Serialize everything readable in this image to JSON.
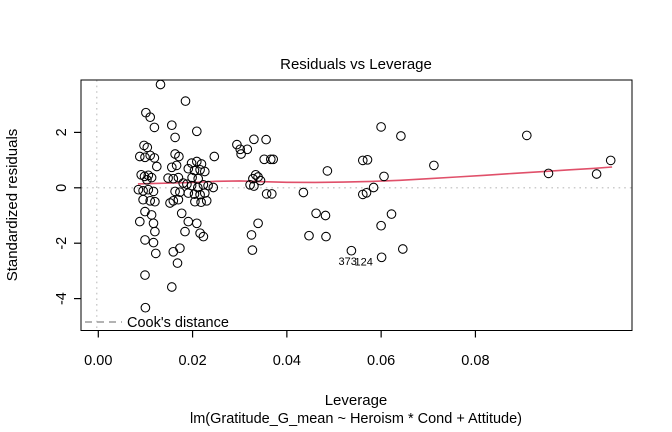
{
  "figure": {
    "title": "Residuals vs Leverage",
    "xlabel": "Leverage",
    "ylabel": "Standardized residuals",
    "formula": "lm(Gratitude_G_mean ~ Heroism * Cond + Attitude)",
    "legend": {
      "label": "Cook's distance",
      "line_style": "dashed"
    }
  },
  "colors": {
    "points": "#000000",
    "smooth_line": "#e0506a",
    "reference_dotted": "#bcbcbc",
    "legend_gray": "#9a9a9a",
    "box": "#000000",
    "background": "#ffffff"
  },
  "chart_data": {
    "type": "scatter",
    "title": "Residuals vs Leverage",
    "xlabel": "Leverage",
    "ylabel": "Standardized residuals",
    "caption": "lm(Gratitude_G_mean ~ Heroism * Cond + Attitude)",
    "xlim": [
      -0.0037,
      0.113
    ],
    "ylim": [
      -5.15,
      3.9
    ],
    "grid": false,
    "legend_position": "bottom-left",
    "x_ticks": [
      {
        "label": "0.00",
        "value": 0.0
      },
      {
        "label": "0.02",
        "value": 0.02
      },
      {
        "label": "0.04",
        "value": 0.04
      },
      {
        "label": "0.06",
        "value": 0.06
      },
      {
        "label": "0.08",
        "value": 0.08
      }
    ],
    "y_ticks": [
      {
        "label": "2",
        "value": 2
      },
      {
        "label": "0",
        "value": 0
      },
      {
        "label": "-2",
        "value": -2
      },
      {
        "label": "-4",
        "value": -4
      }
    ],
    "reference_lines": {
      "horizontal_zero": 0,
      "vertical_left": 0
    },
    "smooth_line": [
      [
        0.0084,
        0.14
      ],
      [
        0.012,
        0.16
      ],
      [
        0.016,
        0.175
      ],
      [
        0.02,
        0.19
      ],
      [
        0.025,
        0.235
      ],
      [
        0.03,
        0.25
      ],
      [
        0.034,
        0.225
      ],
      [
        0.04,
        0.2
      ],
      [
        0.046,
        0.195
      ],
      [
        0.052,
        0.205
      ],
      [
        0.058,
        0.23
      ],
      [
        0.064,
        0.27
      ],
      [
        0.07,
        0.33
      ],
      [
        0.076,
        0.39
      ],
      [
        0.082,
        0.45
      ],
      [
        0.088,
        0.52
      ],
      [
        0.094,
        0.58
      ],
      [
        0.1,
        0.65
      ],
      [
        0.105,
        0.7
      ],
      [
        0.109,
        0.75
      ]
    ],
    "labeled_points": [
      {
        "label": "373",
        "x": 0.0537,
        "y": -2.27,
        "label_x": 0.0529,
        "label_y": -2.64
      },
      {
        "label": "124",
        "x": 0.0601,
        "y": -2.51,
        "label_x": 0.0563,
        "label_y": -2.66
      }
    ],
    "points": [
      [
        0.0132,
        3.73
      ],
      [
        0.0185,
        3.13
      ],
      [
        0.0101,
        2.71
      ],
      [
        0.011,
        2.55
      ],
      [
        0.0119,
        2.18
      ],
      [
        0.0156,
        2.26
      ],
      [
        0.0163,
        1.82
      ],
      [
        0.0097,
        1.53
      ],
      [
        0.0104,
        1.46
      ],
      [
        0.0088,
        1.13
      ],
      [
        0.0099,
        1.1
      ],
      [
        0.011,
        1.17
      ],
      [
        0.0119,
        1.08
      ],
      [
        0.0163,
        1.22
      ],
      [
        0.0171,
        1.13
      ],
      [
        0.0124,
        0.77
      ],
      [
        0.0156,
        0.74
      ],
      [
        0.0166,
        0.81
      ],
      [
        0.0091,
        0.47
      ],
      [
        0.0098,
        0.41
      ],
      [
        0.0106,
        0.45
      ],
      [
        0.0113,
        0.37
      ],
      [
        0.0103,
        0.29
      ],
      [
        0.0148,
        0.35
      ],
      [
        0.0159,
        0.33
      ],
      [
        0.017,
        0.37
      ],
      [
        0.018,
        0.17
      ],
      [
        0.0085,
        -0.07
      ],
      [
        0.0095,
        -0.11
      ],
      [
        0.0106,
        -0.07
      ],
      [
        0.0117,
        -0.13
      ],
      [
        0.0163,
        -0.13
      ],
      [
        0.0173,
        -0.16
      ],
      [
        0.0095,
        -0.43
      ],
      [
        0.011,
        -0.47
      ],
      [
        0.012,
        -0.5
      ],
      [
        0.0159,
        -0.47
      ],
      [
        0.017,
        -0.43
      ],
      [
        0.0209,
        2.04
      ],
      [
        0.0246,
        1.13
      ],
      [
        0.0294,
        1.56
      ],
      [
        0.0303,
        1.22
      ],
      [
        0.0198,
        0.89
      ],
      [
        0.0209,
        0.95
      ],
      [
        0.0219,
        0.86
      ],
      [
        0.0191,
        0.69
      ],
      [
        0.0204,
        0.62
      ],
      [
        0.0216,
        0.65
      ],
      [
        0.0226,
        0.59
      ],
      [
        0.0199,
        0.37
      ],
      [
        0.0212,
        0.33
      ],
      [
        0.0188,
        0.13
      ],
      [
        0.0198,
        0.08
      ],
      [
        0.0211,
        0.01
      ],
      [
        0.0223,
        0.11
      ],
      [
        0.0233,
        0.08
      ],
      [
        0.0244,
        0.01
      ],
      [
        0.0191,
        -0.19
      ],
      [
        0.0204,
        -0.23
      ],
      [
        0.0216,
        -0.25
      ],
      [
        0.0226,
        -0.19
      ],
      [
        0.0205,
        -0.5
      ],
      [
        0.0218,
        -0.52
      ],
      [
        0.023,
        -0.47
      ],
      [
        0.0099,
        -0.86
      ],
      [
        0.0113,
        -0.98
      ],
      [
        0.0088,
        -1.22
      ],
      [
        0.0117,
        -1.28
      ],
      [
        0.012,
        -1.58
      ],
      [
        0.0099,
        -1.88
      ],
      [
        0.0117,
        -1.98
      ],
      [
        0.0122,
        -2.37
      ],
      [
        0.0159,
        -2.31
      ],
      [
        0.0173,
        -2.18
      ],
      [
        0.0168,
        -2.72
      ],
      [
        0.0099,
        -3.15
      ],
      [
        0.0156,
        -3.58
      ],
      [
        0.01,
        -4.33
      ],
      [
        0.0152,
        -0.55
      ],
      [
        0.0177,
        -0.92
      ],
      [
        0.0191,
        -1.22
      ],
      [
        0.0209,
        -1.28
      ],
      [
        0.0184,
        -1.58
      ],
      [
        0.0216,
        -1.64
      ],
      [
        0.0223,
        -1.76
      ],
      [
        0.033,
        1.75
      ],
      [
        0.0356,
        1.74
      ],
      [
        0.0301,
        1.39
      ],
      [
        0.0316,
        1.39
      ],
      [
        0.0352,
        1.03
      ],
      [
        0.0366,
        1.03
      ],
      [
        0.0371,
        1.03
      ],
      [
        0.0334,
        0.47
      ],
      [
        0.0339,
        0.39
      ],
      [
        0.0328,
        0.33
      ],
      [
        0.0344,
        0.26
      ],
      [
        0.0322,
        0.11
      ],
      [
        0.033,
        0.06
      ],
      [
        0.0486,
        0.61
      ],
      [
        0.0357,
        -0.22
      ],
      [
        0.0368,
        -0.22
      ],
      [
        0.0435,
        -0.17
      ],
      [
        0.0561,
        0.99
      ],
      [
        0.0571,
        1.01
      ],
      [
        0.0561,
        -0.24
      ],
      [
        0.0569,
        -0.18
      ],
      [
        0.0584,
        0.01
      ],
      [
        0.0339,
        -1.28
      ],
      [
        0.0325,
        -1.7
      ],
      [
        0.0327,
        -2.25
      ],
      [
        0.0462,
        -0.92
      ],
      [
        0.0482,
        -1.0
      ],
      [
        0.0447,
        -1.73
      ],
      [
        0.0483,
        -1.76
      ],
      [
        0.06,
        2.2
      ],
      [
        0.0642,
        1.87
      ],
      [
        0.0909,
        1.89
      ],
      [
        0.0712,
        0.81
      ],
      [
        0.0606,
        0.41
      ],
      [
        0.0622,
        -0.95
      ],
      [
        0.06,
        -1.37
      ],
      [
        0.0646,
        -2.21
      ],
      [
        0.0955,
        0.52
      ],
      [
        0.1057,
        0.5
      ],
      [
        0.1087,
        0.99
      ]
    ]
  }
}
